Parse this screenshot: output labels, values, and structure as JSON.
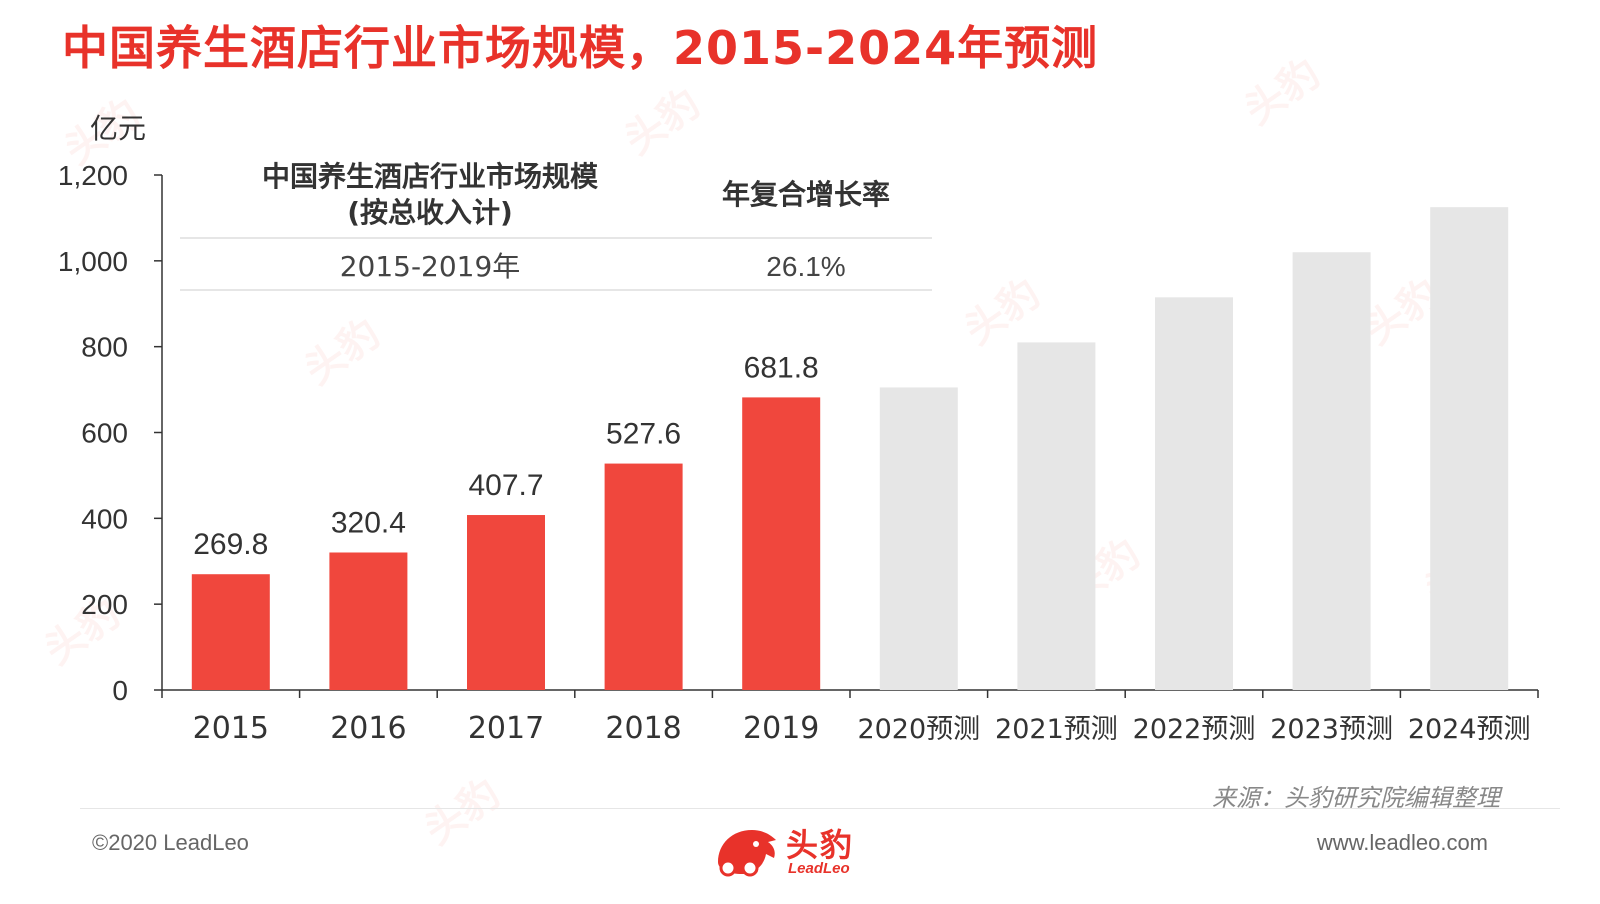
{
  "title": "中国养生酒店行业市场规模，2015-2024年预测",
  "chart_data": {
    "type": "bar",
    "unit_label": "亿元",
    "ylim": [
      0,
      1200
    ],
    "yticks": [
      0,
      200,
      400,
      600,
      800,
      1000,
      1200
    ],
    "ytick_labels": [
      "0",
      "200",
      "400",
      "600",
      "800",
      "1,000",
      "1,200"
    ],
    "categories": [
      "2015",
      "2016",
      "2017",
      "2018",
      "2019",
      "2020预测",
      "2021预测",
      "2022预测",
      "2023预测",
      "2024预测"
    ],
    "values": [
      269.8,
      320.4,
      407.7,
      527.6,
      681.8,
      705,
      810,
      915,
      1020,
      1125
    ],
    "value_labels": [
      "269.8",
      "320.4",
      "407.7",
      "527.6",
      "681.8",
      "",
      "",
      "",
      "",
      ""
    ],
    "forecast_flags": [
      false,
      false,
      false,
      false,
      false,
      true,
      true,
      true,
      true,
      true
    ],
    "colors": {
      "actual": "#f0473d",
      "forecast": "#e6e6e6",
      "axis": "#333333",
      "label": "#333333"
    },
    "cagr_table": {
      "header_left": [
        "中国养生酒店行业市场规模",
        "(按总收入计)"
      ],
      "header_right": "年复合增长率",
      "row_period": "2015-2019年",
      "row_value": "26.1%"
    }
  },
  "source": "来源：头豹研究院编辑整理",
  "footer": {
    "copyright": "©2020 LeadLeo",
    "website": "www.leadleo.com"
  },
  "logo": {
    "name": "头豹",
    "sub": "LeadLeo"
  },
  "watermark_text": "头豹"
}
